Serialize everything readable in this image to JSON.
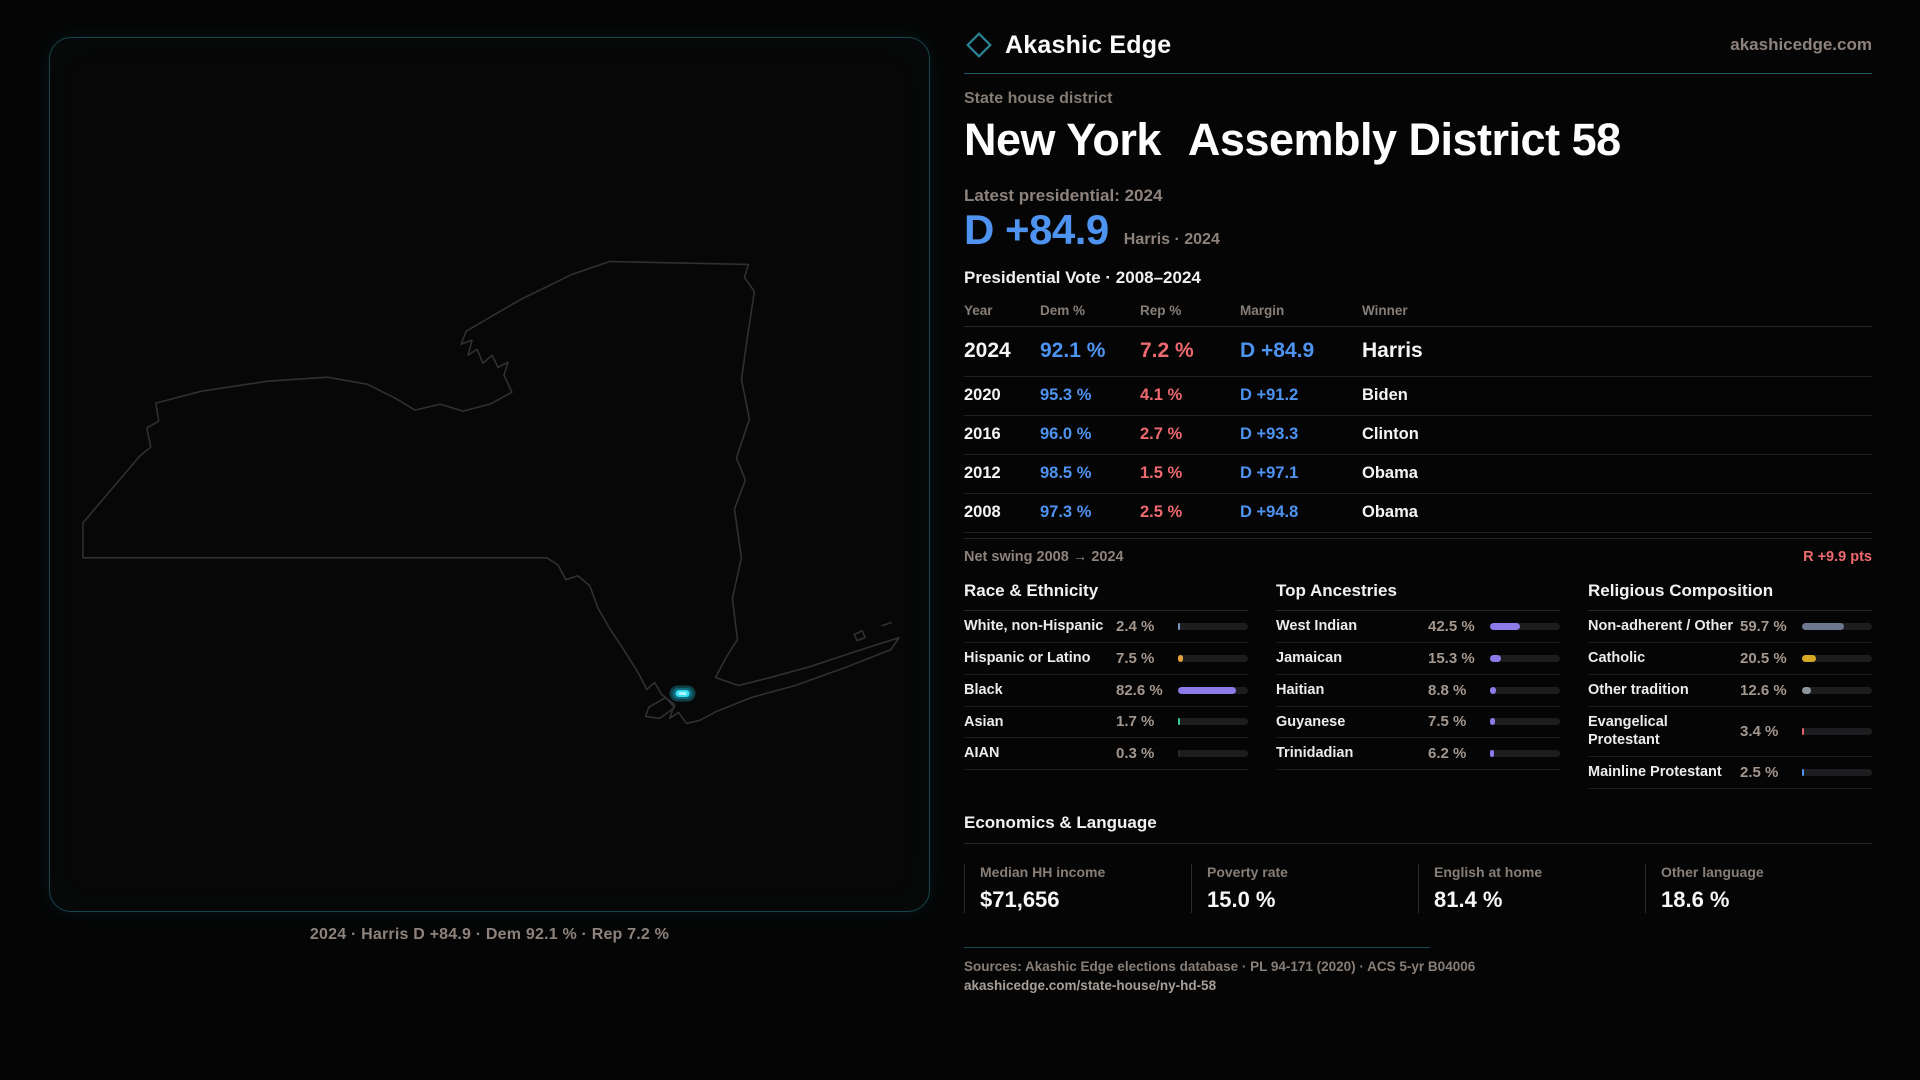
{
  "brand": {
    "name": "Akashic Edge",
    "domain": "akashicedge.com"
  },
  "header": {
    "eyebrow": "State house district",
    "title_state": "New York",
    "title_seat": "Assembly District 58"
  },
  "headline": {
    "label": "Latest presidential: 2024",
    "margin": "D +84.9",
    "context": "Harris · 2024"
  },
  "table": {
    "title": "Presidential Vote · 2008–2024",
    "columns": [
      "Year",
      "Dem %",
      "Rep %",
      "Margin",
      "Winner"
    ],
    "rows": [
      {
        "year": "2024",
        "dem": "92.1 %",
        "rep": "7.2 %",
        "margin": "D +84.9",
        "winner": "Harris"
      },
      {
        "year": "2020",
        "dem": "95.3 %",
        "rep": "4.1 %",
        "margin": "D +91.2",
        "winner": "Biden"
      },
      {
        "year": "2016",
        "dem": "96.0 %",
        "rep": "2.7 %",
        "margin": "D +93.3",
        "winner": "Clinton"
      },
      {
        "year": "2012",
        "dem": "98.5 %",
        "rep": "1.5 %",
        "margin": "D +97.1",
        "winner": "Obama"
      },
      {
        "year": "2008",
        "dem": "97.3 %",
        "rep": "2.5 %",
        "margin": "D +94.8",
        "winner": "Obama"
      }
    ]
  },
  "net_swing": {
    "label": "Net swing 2008 → 2024",
    "value": "R +9.9 pts"
  },
  "demographics": {
    "race": {
      "title": "Race & Ethnicity",
      "rows": [
        {
          "label": "White, non-Hispanic",
          "value": "2.4 %",
          "pct": 2.4,
          "color": "#7b96c4"
        },
        {
          "label": "Hispanic or Latino",
          "value": "7.5 %",
          "pct": 7.5,
          "color": "#e3a23b"
        },
        {
          "label": "Black",
          "value": "82.6 %",
          "pct": 82.6,
          "color": "#8d7ae6"
        },
        {
          "label": "Asian",
          "value": "1.7 %",
          "pct": 1.7,
          "color": "#39c99a"
        },
        {
          "label": "AIAN",
          "value": "0.3 %",
          "pct": 0.3,
          "color": "#2c2c30"
        }
      ]
    },
    "ancestry": {
      "title": "Top Ancestries",
      "rows": [
        {
          "label": "West Indian",
          "value": "42.5 %",
          "pct": 42.5,
          "color": "#8d7ae6"
        },
        {
          "label": "Jamaican",
          "value": "15.3 %",
          "pct": 15.3,
          "color": "#8d7ae6"
        },
        {
          "label": "Haitian",
          "value": "8.8 %",
          "pct": 8.8,
          "color": "#8d7ae6"
        },
        {
          "label": "Guyanese",
          "value": "7.5 %",
          "pct": 7.5,
          "color": "#8d7ae6"
        },
        {
          "label": "Trinidadian",
          "value": "6.2 %",
          "pct": 6.2,
          "color": "#8d7ae6"
        }
      ]
    },
    "religion": {
      "title": "Religious Composition",
      "rows": [
        {
          "label": "Non-adherent / Other",
          "value": "59.7 %",
          "pct": 59.7,
          "color": "#6b7890"
        },
        {
          "label": "Catholic",
          "value": "20.5 %",
          "pct": 20.5,
          "color": "#d7a826"
        },
        {
          "label": "Other tradition",
          "value": "12.6 %",
          "pct": 12.6,
          "color": "#8d949c"
        },
        {
          "label": "Evangelical Protestant",
          "value": "3.4 %",
          "pct": 3.4,
          "color": "#e06467"
        },
        {
          "label": "Mainline Protestant",
          "value": "2.5 %",
          "pct": 2.5,
          "color": "#4e93f0"
        }
      ]
    }
  },
  "economics": {
    "title": "Economics & Language",
    "stats": [
      {
        "label": "Median HH income",
        "value": "$71,656"
      },
      {
        "label": "Poverty rate",
        "value": "15.0 %"
      },
      {
        "label": "English at home",
        "value": "81.4 %"
      },
      {
        "label": "Other language",
        "value": "18.6 %"
      }
    ]
  },
  "map": {
    "region": "New York",
    "caption": "2024 · Harris D +84.9 · Dem 92.1 % · Rep 7.2 %"
  },
  "footer": {
    "sources": "Sources: Akashic Edge elections database · PL 94-171 (2020) · ACS 5-yr B04006",
    "permalink": "akashicedge.com/state-house/ny-hd-58"
  },
  "colors": {
    "dem_blue": "#4e93f0",
    "rep_red": "#ee6a6f",
    "accent_cyan": "#22d3ee"
  }
}
